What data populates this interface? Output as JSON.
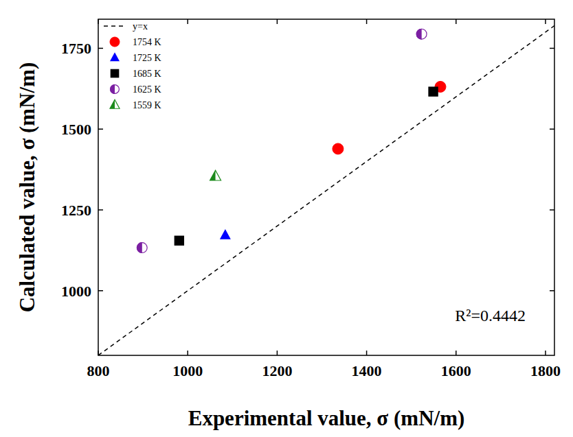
{
  "chart_data": {
    "type": "scatter",
    "x_label": "Experimental value, σ (mN/m)",
    "y_label": "Calculated value, σ (mN/m)",
    "annotation": "R²=0.4442",
    "xlim": [
      800,
      1820
    ],
    "ylim": [
      800,
      1840
    ],
    "xticks": [
      800,
      1000,
      1200,
      1400,
      1600,
      1800
    ],
    "yticks": [
      1000,
      1250,
      1500,
      1750
    ],
    "legend": "upper left",
    "grid": false,
    "series": [
      {
        "name": "y=x",
        "type": "line",
        "line_style": "dashed",
        "color": "#000000",
        "x": [
          800,
          1820
        ],
        "values": [
          800,
          1820
        ]
      },
      {
        "name": "1754 K",
        "marker": "circle",
        "color": "#ff0000",
        "x": [
          1565,
          1336
        ],
        "values": [
          1631,
          1439
        ]
      },
      {
        "name": "1725 K",
        "marker": "triangle",
        "color": "#0000ff",
        "x": [
          1084
        ],
        "values": [
          1172
        ]
      },
      {
        "name": "1685 K",
        "marker": "square",
        "color": "#000000",
        "x": [
          1549,
          981
        ],
        "values": [
          1616,
          1155
        ]
      },
      {
        "name": "1625 K",
        "marker": "half-circle",
        "color": "#7b1fa2",
        "x": [
          1523,
          898
        ],
        "values": [
          1794,
          1133
        ]
      },
      {
        "name": "1559 K",
        "marker": "half-triangle",
        "color": "#1b8a1b",
        "x": [
          1062
        ],
        "values": [
          1354
        ]
      }
    ]
  }
}
